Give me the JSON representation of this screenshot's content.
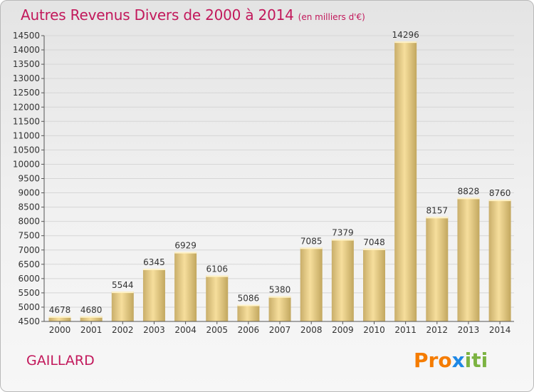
{
  "title": "Autres Revenus Divers de 2000 à 2014",
  "unit_note": "(en milliers d'€)",
  "city": "GAILLARD",
  "brand": "Proxiti",
  "colors": {
    "title": "#c2185b",
    "bar_light": "#f5dc98",
    "bar_dark": "#c9ae6a",
    "brand_letters": [
      "#f57c00",
      "#f57c00",
      "#f57c00",
      "#1e88e5",
      "#7cb342",
      "#7cb342",
      "#7cb342"
    ]
  },
  "chart_data": {
    "type": "bar",
    "categories": [
      "2000",
      "2001",
      "2002",
      "2003",
      "2004",
      "2005",
      "2006",
      "2007",
      "2008",
      "2009",
      "2010",
      "2011",
      "2012",
      "2013",
      "2014"
    ],
    "values": [
      4678,
      4680,
      5544,
      6345,
      6929,
      6106,
      5086,
      5380,
      7085,
      7379,
      7048,
      14296,
      8157,
      8828,
      8760
    ],
    "ylim": [
      4500,
      14500
    ],
    "yticks": [
      4500,
      5000,
      5500,
      6000,
      6500,
      7000,
      7500,
      8000,
      8500,
      9000,
      9500,
      10000,
      10500,
      11000,
      11500,
      12000,
      12500,
      13000,
      13500,
      14000,
      14500
    ],
    "grid": true,
    "data_labels": true
  }
}
